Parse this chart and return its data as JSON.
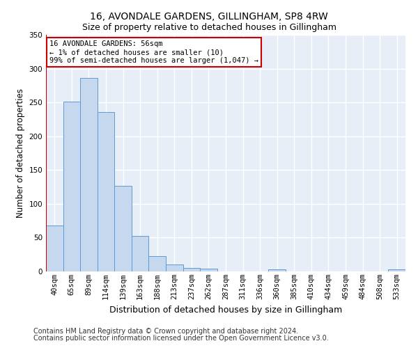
{
  "title": "16, AVONDALE GARDENS, GILLINGHAM, SP8 4RW",
  "subtitle": "Size of property relative to detached houses in Gillingham",
  "xlabel": "Distribution of detached houses by size in Gillingham",
  "ylabel": "Number of detached properties",
  "categories": [
    "40sqm",
    "65sqm",
    "89sqm",
    "114sqm",
    "139sqm",
    "163sqm",
    "188sqm",
    "213sqm",
    "237sqm",
    "262sqm",
    "287sqm",
    "311sqm",
    "336sqm",
    "360sqm",
    "385sqm",
    "410sqm",
    "434sqm",
    "459sqm",
    "484sqm",
    "508sqm",
    "533sqm"
  ],
  "values": [
    68,
    251,
    286,
    236,
    127,
    52,
    23,
    10,
    5,
    4,
    0,
    0,
    0,
    3,
    0,
    0,
    0,
    0,
    0,
    0,
    3
  ],
  "bar_color": "#c5d8ee",
  "bar_edge_color": "#5b9bd5",
  "vline_color": "#cc0000",
  "annotation_text": "16 AVONDALE GARDENS: 56sqm\n← 1% of detached houses are smaller (10)\n99% of semi-detached houses are larger (1,047) →",
  "annotation_box_color": "#cc0000",
  "ylim": [
    0,
    350
  ],
  "yticks": [
    0,
    50,
    100,
    150,
    200,
    250,
    300,
    350
  ],
  "footnote1": "Contains HM Land Registry data © Crown copyright and database right 2024.",
  "footnote2": "Contains public sector information licensed under the Open Government Licence v3.0.",
  "background_color": "#e8eef7",
  "grid_color": "#ffffff",
  "title_fontsize": 10,
  "subtitle_fontsize": 9,
  "ylabel_fontsize": 8.5,
  "xlabel_fontsize": 9,
  "tick_fontsize": 7.5,
  "annotation_fontsize": 7.5,
  "footnote_fontsize": 7
}
